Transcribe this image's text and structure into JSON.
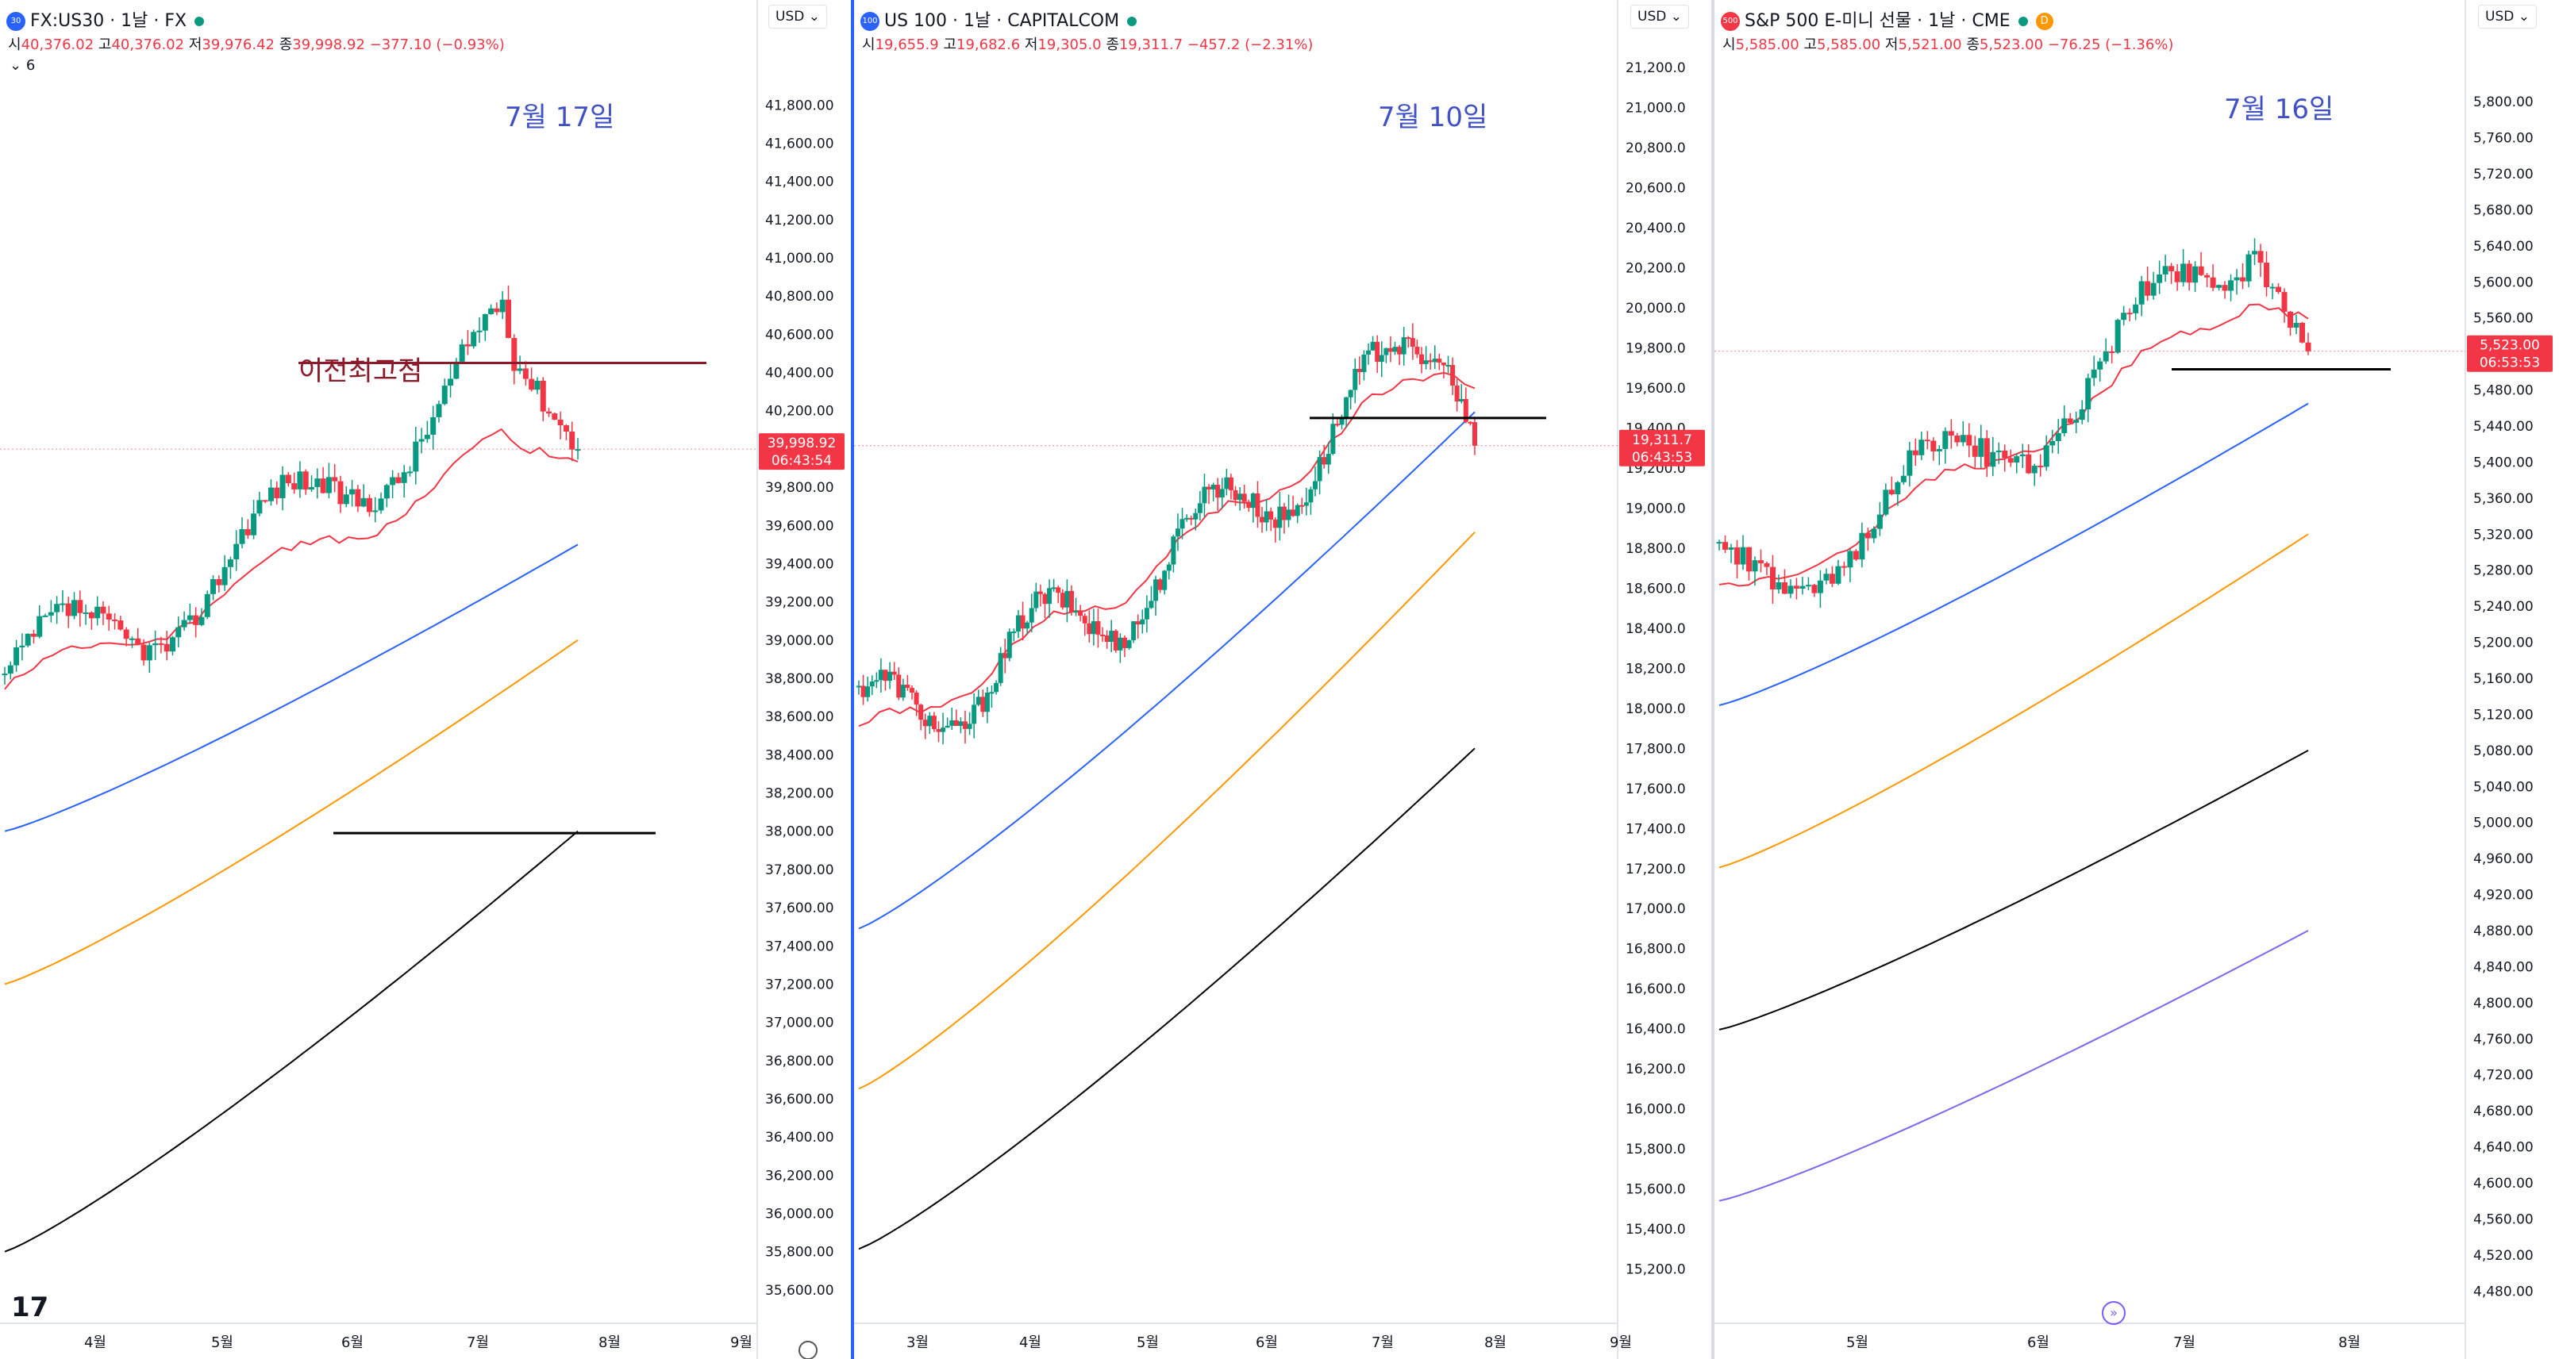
{
  "panels": [
    {
      "symbol_badge": "30",
      "title": "FX:US30 · 1날 · FX",
      "o_label": "시",
      "o": "40,376.02",
      "h_label": "고",
      "h": "40,376.02",
      "l_label": "저",
      "l": "39,976.42",
      "c_label": "종",
      "c": "39,998.92",
      "chg": "−377.10 (−0.93%)",
      "ma_toggle": "6",
      "currency": "USD",
      "price_label": "39,998.92",
      "countdown": "06:43:54",
      "annotation_date": "7월 17일",
      "annotation_note": "이전최고점",
      "chart_data": {
        "type": "candlestick",
        "ylim": [
          35500,
          42100
        ],
        "y_ticks": [
          35600,
          35800,
          36000,
          36200,
          36400,
          36600,
          36800,
          37000,
          37200,
          37400,
          37600,
          37800,
          38000,
          38200,
          38400,
          38600,
          38800,
          39000,
          39200,
          39400,
          39600,
          39800,
          40000,
          40200,
          40400,
          40600,
          40800,
          41000,
          41200,
          41400,
          41600,
          41800
        ],
        "x_labels": [
          "4월",
          "5월",
          "6월",
          "7월",
          "8월",
          "9월"
        ],
        "last_price": 39998.92,
        "prev_high_line": 40450,
        "support_line": 37990,
        "moving_averages": [
          {
            "name": "MA20",
            "color": "#f23645",
            "start": 38800,
            "end": 40000
          },
          {
            "name": "MA50",
            "color": "#2962ff",
            "start": 38000,
            "end": 39500
          },
          {
            "name": "MA100",
            "color": "#ff9800",
            "start": 37200,
            "end": 39000
          },
          {
            "name": "MA200",
            "color": "#000000",
            "start": 35800,
            "end": 38000
          }
        ]
      }
    },
    {
      "symbol_badge": "100",
      "title": "US 100 · 1날 · CAPITALCOM",
      "o_label": "시",
      "o": "19,655.9",
      "h_label": "고",
      "h": "19,682.6",
      "l_label": "저",
      "l": "19,305.0",
      "c_label": "종",
      "c": "19,311.7",
      "chg": "−457.2 (−2.31%)",
      "currency": "USD",
      "price_label": "19,311.7",
      "countdown": "06:43:53",
      "annotation_date": "7월 10일",
      "chart_data": {
        "type": "candlestick",
        "ylim": [
          15000,
          21300
        ],
        "y_ticks": [
          15200,
          15400,
          15600,
          15800,
          16000,
          16200,
          16400,
          16600,
          16800,
          17000,
          17200,
          17400,
          17600,
          17800,
          18000,
          18200,
          18400,
          18600,
          18800,
          19000,
          19200,
          19400,
          19600,
          19800,
          20000,
          20200,
          20400,
          20600,
          20800,
          21000,
          21200
        ],
        "x_labels": [
          "3월",
          "4월",
          "5월",
          "6월",
          "7월",
          "8월",
          "9월"
        ],
        "last_price": 19311.7,
        "support_line": 19450,
        "moving_averages": [
          {
            "name": "MA20",
            "color": "#f23645",
            "start": 17900,
            "end": 19850
          },
          {
            "name": "MA50",
            "color": "#2962ff",
            "start": 16900,
            "end": 19480
          },
          {
            "name": "MA100",
            "color": "#ff9800",
            "start": 16100,
            "end": 18880
          },
          {
            "name": "MA200",
            "color": "#000000",
            "start": 15300,
            "end": 17800
          }
        ]
      }
    },
    {
      "symbol_badge": "500",
      "title": "S&P 500 E-미니 선물 · 1날 · CME",
      "d_badge": "D",
      "o_label": "시",
      "o": "5,585.00",
      "h_label": "고",
      "h": "5,585.00",
      "l_label": "저",
      "l": "5,521.00",
      "c_label": "종",
      "c": "5,523.00",
      "chg": "−76.25 (−1.36%)",
      "currency": "USD",
      "price_label": "5,523.00",
      "countdown": "06:53:53",
      "annotation_date": "7월 16일",
      "chart_data": {
        "type": "candlestick",
        "ylim": [
          4460,
          5860
        ],
        "y_ticks": [
          4480,
          4520,
          4560,
          4600,
          4640,
          4680,
          4720,
          4760,
          4800,
          4840,
          4880,
          4920,
          4960,
          5000,
          5040,
          5080,
          5120,
          5160,
          5200,
          5240,
          5280,
          5320,
          5360,
          5400,
          5440,
          5480,
          5520,
          5560,
          5600,
          5640,
          5680,
          5720,
          5760,
          5800
        ],
        "x_labels": [
          "5월",
          "6월",
          "7월",
          "8월"
        ],
        "last_price": 5523.0,
        "support_line": 5503,
        "moving_averages": [
          {
            "name": "MA20",
            "color": "#f23645",
            "start": 5260,
            "end": 5600
          },
          {
            "name": "MA50",
            "color": "#2962ff",
            "start": 5130,
            "end": 5465
          },
          {
            "name": "MA100",
            "color": "#ff9800",
            "start": 4950,
            "end": 5320
          },
          {
            "name": "MA200",
            "color": "#000000",
            "start": 4770,
            "end": 5080
          },
          {
            "name": "MA300",
            "color": "#7b68ee",
            "start": 4580,
            "end": 4880
          }
        ]
      }
    }
  ],
  "brand": "17"
}
